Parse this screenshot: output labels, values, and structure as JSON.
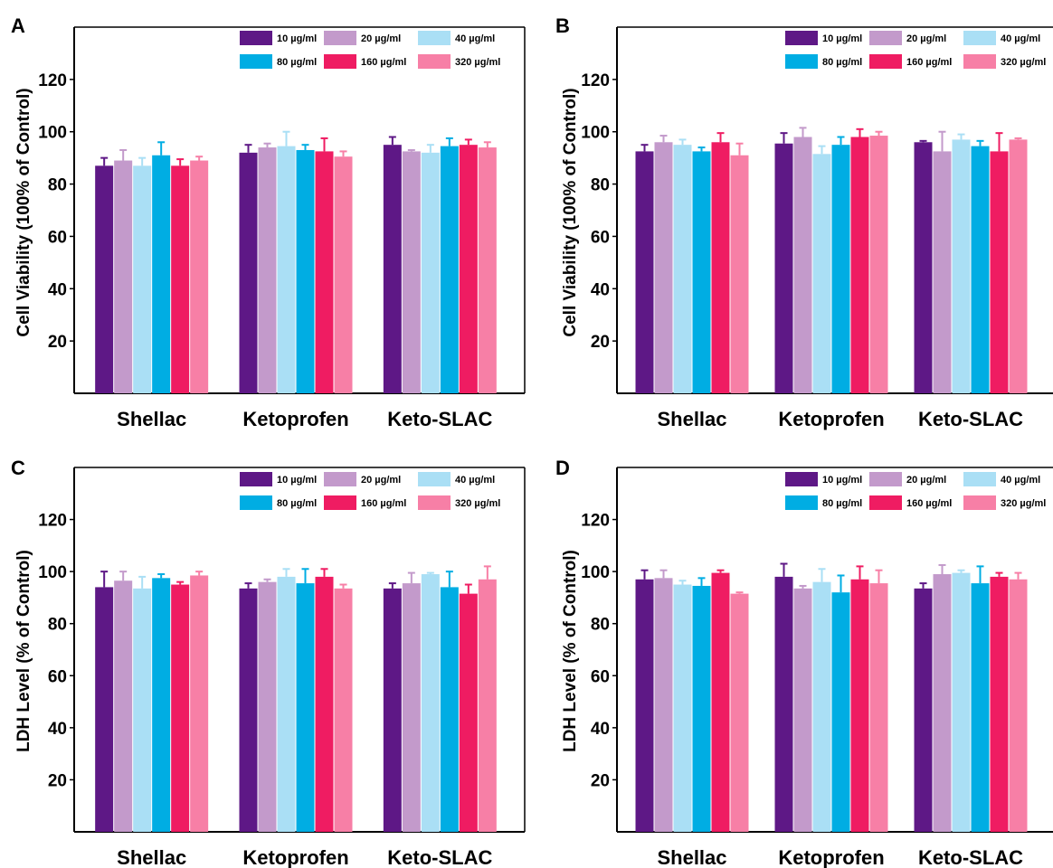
{
  "colors": {
    "10": "#5e1886",
    "20": "#c39acb",
    "40": "#aadff5",
    "80": "#00ade3",
    "160": "#ef1c62",
    "320": "#f77fa6"
  },
  "chart_data": [
    {
      "type": "bar",
      "panel_label": "A",
      "ylabel": "Cell Viability (100% of Control)",
      "yticks": [
        20,
        40,
        60,
        80,
        100,
        120
      ],
      "ylim": [
        0,
        140
      ],
      "categories": [
        "Shellac",
        "Ketoprofen",
        "Keto-SLAC"
      ],
      "legend_position": "top-right",
      "series": [
        {
          "name": "10 µg/ml",
          "values": [
            87,
            92,
            95
          ],
          "errors": [
            3,
            3,
            3
          ]
        },
        {
          "name": "20 µg/ml",
          "values": [
            89,
            94,
            92.5
          ],
          "errors": [
            4,
            1.5,
            0.5
          ]
        },
        {
          "name": "40 µg/ml",
          "values": [
            87,
            94.5,
            92
          ],
          "errors": [
            3,
            5.5,
            3
          ]
        },
        {
          "name": "80 µg/ml",
          "values": [
            91,
            93,
            94.5
          ],
          "errors": [
            5,
            2,
            3
          ]
        },
        {
          "name": "160 µg/ml",
          "values": [
            87,
            92.5,
            95
          ],
          "errors": [
            2.5,
            5,
            2
          ]
        },
        {
          "name": "320 µg/ml",
          "values": [
            89,
            90.5,
            94
          ],
          "errors": [
            1.5,
            2,
            2
          ]
        }
      ]
    },
    {
      "type": "bar",
      "panel_label": "B",
      "ylabel": "Cell Viability (100% of Control)",
      "yticks": [
        20,
        40,
        60,
        80,
        100,
        120
      ],
      "ylim": [
        0,
        140
      ],
      "categories": [
        "Shellac",
        "Ketoprofen",
        "Keto-SLAC"
      ],
      "legend_position": "top-right",
      "series": [
        {
          "name": "10 µg/ml",
          "values": [
            92.5,
            95.5,
            96
          ],
          "errors": [
            2.5,
            4,
            0.5
          ]
        },
        {
          "name": "20 µg/ml",
          "values": [
            96,
            98,
            92.5
          ],
          "errors": [
            2.5,
            3.5,
            7.5
          ]
        },
        {
          "name": "40 µg/ml",
          "values": [
            95,
            91.5,
            97
          ],
          "errors": [
            2,
            3,
            2
          ]
        },
        {
          "name": "80 µg/ml",
          "values": [
            92.5,
            95,
            94.5
          ],
          "errors": [
            1.5,
            3,
            2
          ]
        },
        {
          "name": "160 µg/ml",
          "values": [
            96,
            98,
            92.5
          ],
          "errors": [
            3.5,
            3,
            7
          ]
        },
        {
          "name": "320 µg/ml",
          "values": [
            91,
            98.5,
            97
          ],
          "errors": [
            4.5,
            1.5,
            0.5
          ]
        }
      ]
    },
    {
      "type": "bar",
      "panel_label": "C",
      "ylabel": "LDH Level (% of Control)",
      "yticks": [
        20,
        40,
        60,
        80,
        100,
        120
      ],
      "ylim": [
        0,
        140
      ],
      "categories": [
        "Shellac",
        "Ketoprofen",
        "Keto-SLAC"
      ],
      "legend_position": "top-right",
      "series": [
        {
          "name": "10 µg/ml",
          "values": [
            94,
            93.5,
            93.5
          ],
          "errors": [
            6,
            2,
            2
          ]
        },
        {
          "name": "20 µg/ml",
          "values": [
            96.5,
            96,
            95.5
          ],
          "errors": [
            3.5,
            1,
            4
          ]
        },
        {
          "name": "40 µg/ml",
          "values": [
            93.5,
            98,
            99
          ],
          "errors": [
            4.5,
            3,
            0.5
          ]
        },
        {
          "name": "80 µg/ml",
          "values": [
            97.5,
            95.5,
            94
          ],
          "errors": [
            1.5,
            5.5,
            6
          ]
        },
        {
          "name": "160 µg/ml",
          "values": [
            95,
            98,
            91.5
          ],
          "errors": [
            1,
            3,
            3.5
          ]
        },
        {
          "name": "320 µg/ml",
          "values": [
            98.5,
            93.5,
            97
          ],
          "errors": [
            1.5,
            1.5,
            5
          ]
        }
      ]
    },
    {
      "type": "bar",
      "panel_label": "D",
      "ylabel": "LDH Level (% of Control)",
      "yticks": [
        20,
        40,
        60,
        80,
        100,
        120
      ],
      "ylim": [
        0,
        140
      ],
      "categories": [
        "Shellac",
        "Ketoprofen",
        "Keto-SLAC"
      ],
      "legend_position": "top-right",
      "series": [
        {
          "name": "10 µg/ml",
          "values": [
            97,
            98,
            93.5
          ],
          "errors": [
            3.5,
            5,
            2
          ]
        },
        {
          "name": "20 µg/ml",
          "values": [
            97.5,
            93.5,
            99
          ],
          "errors": [
            3,
            1,
            3.5
          ]
        },
        {
          "name": "40 µg/ml",
          "values": [
            95,
            96,
            99.5
          ],
          "errors": [
            1.5,
            5,
            1
          ]
        },
        {
          "name": "80 µg/ml",
          "values": [
            94.5,
            92,
            95.5
          ],
          "errors": [
            3,
            6.5,
            6.5
          ]
        },
        {
          "name": "160 µg/ml",
          "values": [
            99.5,
            97,
            98
          ],
          "errors": [
            1,
            5,
            1.5
          ]
        },
        {
          "name": "320 µg/ml",
          "values": [
            91.5,
            95.5,
            97
          ],
          "errors": [
            0.5,
            5,
            2.5
          ]
        }
      ]
    }
  ]
}
